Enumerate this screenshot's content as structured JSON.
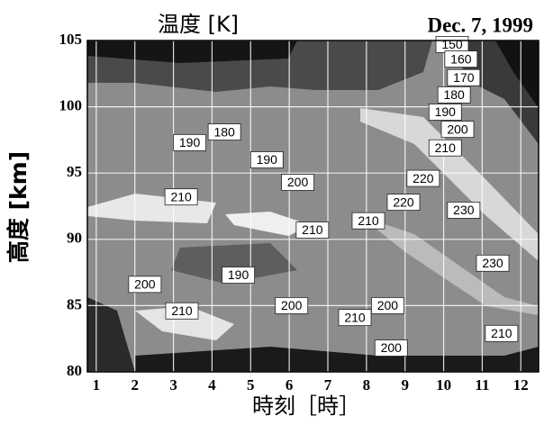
{
  "chart_data": {
    "type": "contour",
    "title": "温度 [K]",
    "date": "Dec. 7, 1999",
    "x_label": "時刻［時］",
    "y_label": "高度 [km]",
    "xlim": [
      0.77,
      12.46
    ],
    "xticks": [
      1,
      2,
      3,
      4,
      5,
      6,
      7,
      8,
      9,
      10,
      11,
      12
    ],
    "ylim": [
      80,
      105
    ],
    "yticks": [
      80,
      85,
      90,
      95,
      100,
      105
    ],
    "grid": true,
    "labels": [
      {
        "x": 10.22,
        "y": 104.7,
        "value": 150
      },
      {
        "x": 10.45,
        "y": 103.6,
        "value": 160
      },
      {
        "x": 10.52,
        "y": 102.2,
        "value": 170
      },
      {
        "x": 10.27,
        "y": 100.9,
        "value": 180
      },
      {
        "x": 10.04,
        "y": 99.6,
        "value": 190
      },
      {
        "x": 10.36,
        "y": 98.3,
        "value": 200
      },
      {
        "x": 10.04,
        "y": 96.9,
        "value": 210
      },
      {
        "x": 9.47,
        "y": 94.6,
        "value": 220
      },
      {
        "x": 10.52,
        "y": 92.2,
        "value": 230
      },
      {
        "x": 11.27,
        "y": 88.2,
        "value": 230
      },
      {
        "x": 8.96,
        "y": 92.8,
        "value": 220
      },
      {
        "x": 8.05,
        "y": 91.4,
        "value": 210
      },
      {
        "x": 3.42,
        "y": 97.3,
        "value": 190
      },
      {
        "x": 4.32,
        "y": 98.1,
        "value": 180
      },
      {
        "x": 5.42,
        "y": 96.0,
        "value": 190
      },
      {
        "x": 6.22,
        "y": 94.3,
        "value": 200
      },
      {
        "x": 3.2,
        "y": 93.2,
        "value": 210
      },
      {
        "x": 6.6,
        "y": 90.7,
        "value": 210
      },
      {
        "x": 4.68,
        "y": 87.3,
        "value": 190
      },
      {
        "x": 2.26,
        "y": 86.6,
        "value": 200
      },
      {
        "x": 3.22,
        "y": 84.6,
        "value": 210
      },
      {
        "x": 6.06,
        "y": 85.0,
        "value": 200
      },
      {
        "x": 7.7,
        "y": 84.1,
        "value": 210
      },
      {
        "x": 8.55,
        "y": 85.0,
        "value": 200
      },
      {
        "x": 8.64,
        "y": 81.8,
        "value": 200
      },
      {
        "x": 11.5,
        "y": 82.9,
        "value": 210
      }
    ]
  }
}
